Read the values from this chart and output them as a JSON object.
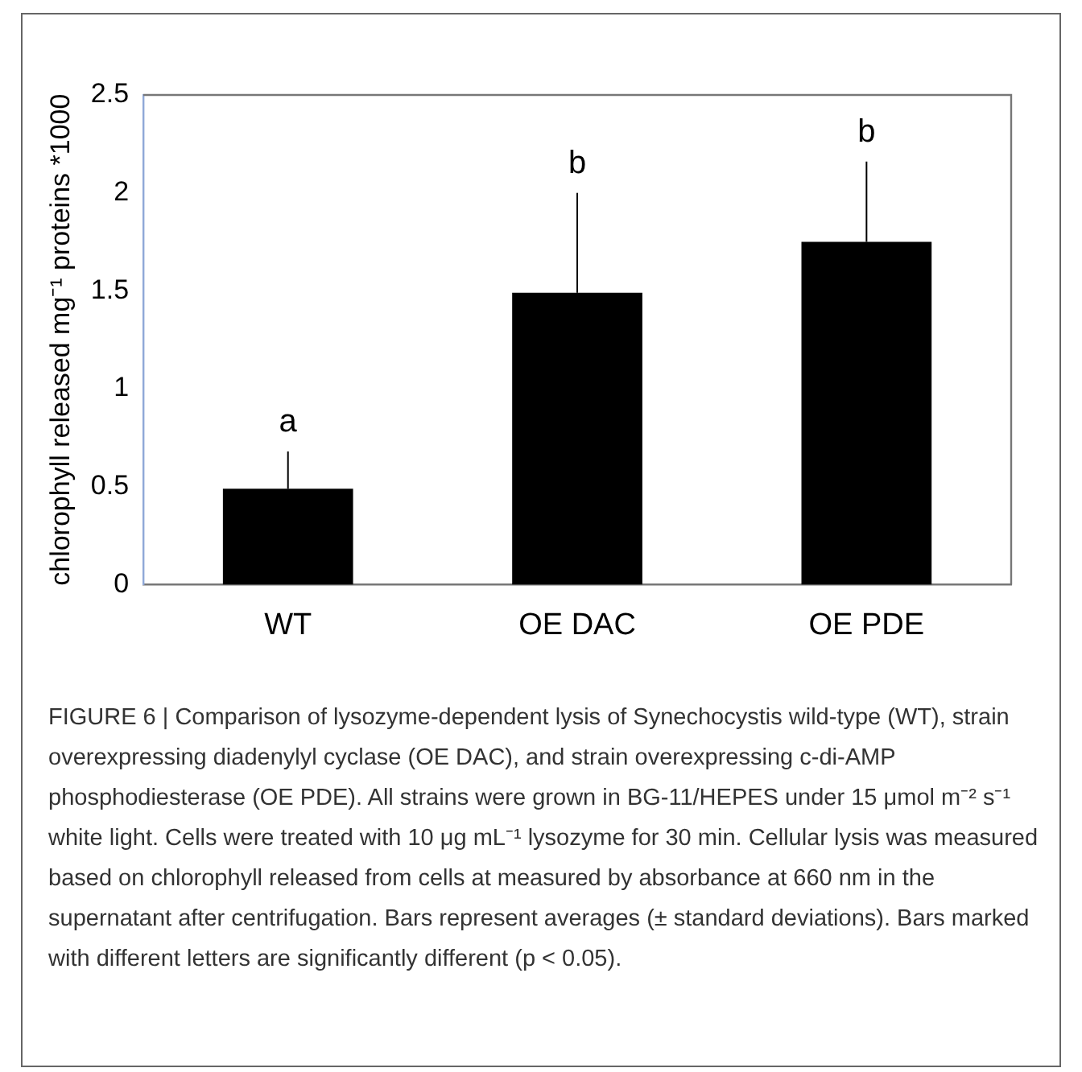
{
  "chart_data": {
    "type": "bar",
    "ylabel": "chlorophyll released mg⁻¹ proteins *1000",
    "categories": [
      "WT",
      "OE DAC",
      "OE PDE"
    ],
    "values": [
      0.49,
      1.49,
      1.75
    ],
    "color": "#000000",
    "errors": [
      [
        0.49,
        0.68
      ],
      [
        1.49,
        2.0
      ],
      [
        1.75,
        2.16
      ]
    ],
    "ylim": [
      0,
      2.5
    ],
    "yticks": [
      0,
      0.5,
      1,
      1.5,
      2,
      2.5
    ],
    "grid": false,
    "legend": false,
    "annotations": [
      {
        "text": "a",
        "x": "WT",
        "y": 0.68
      },
      {
        "text": "b",
        "x": "OE DAC",
        "y": 2.0
      },
      {
        "text": "b",
        "x": "OE PDE",
        "y": 2.16
      },
      "FIGURE 6 | Comparison of lysozyme-dependent lysis of Synechocystis wild-type (WT), strain overexpressing diadenylyl cyclase (OE DAC), and strain overexpressing c-di-AMP phosphodiesterase (OE PDE). All strains were grown in BG-11/HEPES under 15 μmol m⁻² s⁻¹ white light. Cells were treated with 10 μg mL⁻¹ lysozyme for 30 min. Cellular lysis was measured based on chlorophyll released from cells at measured by absorbance at 660 nm in the supernatant after centrifugation. Bars represent averages (± standard deviations). Bars marked with different letters are significantly different (p < 0.05)."
    ]
  }
}
